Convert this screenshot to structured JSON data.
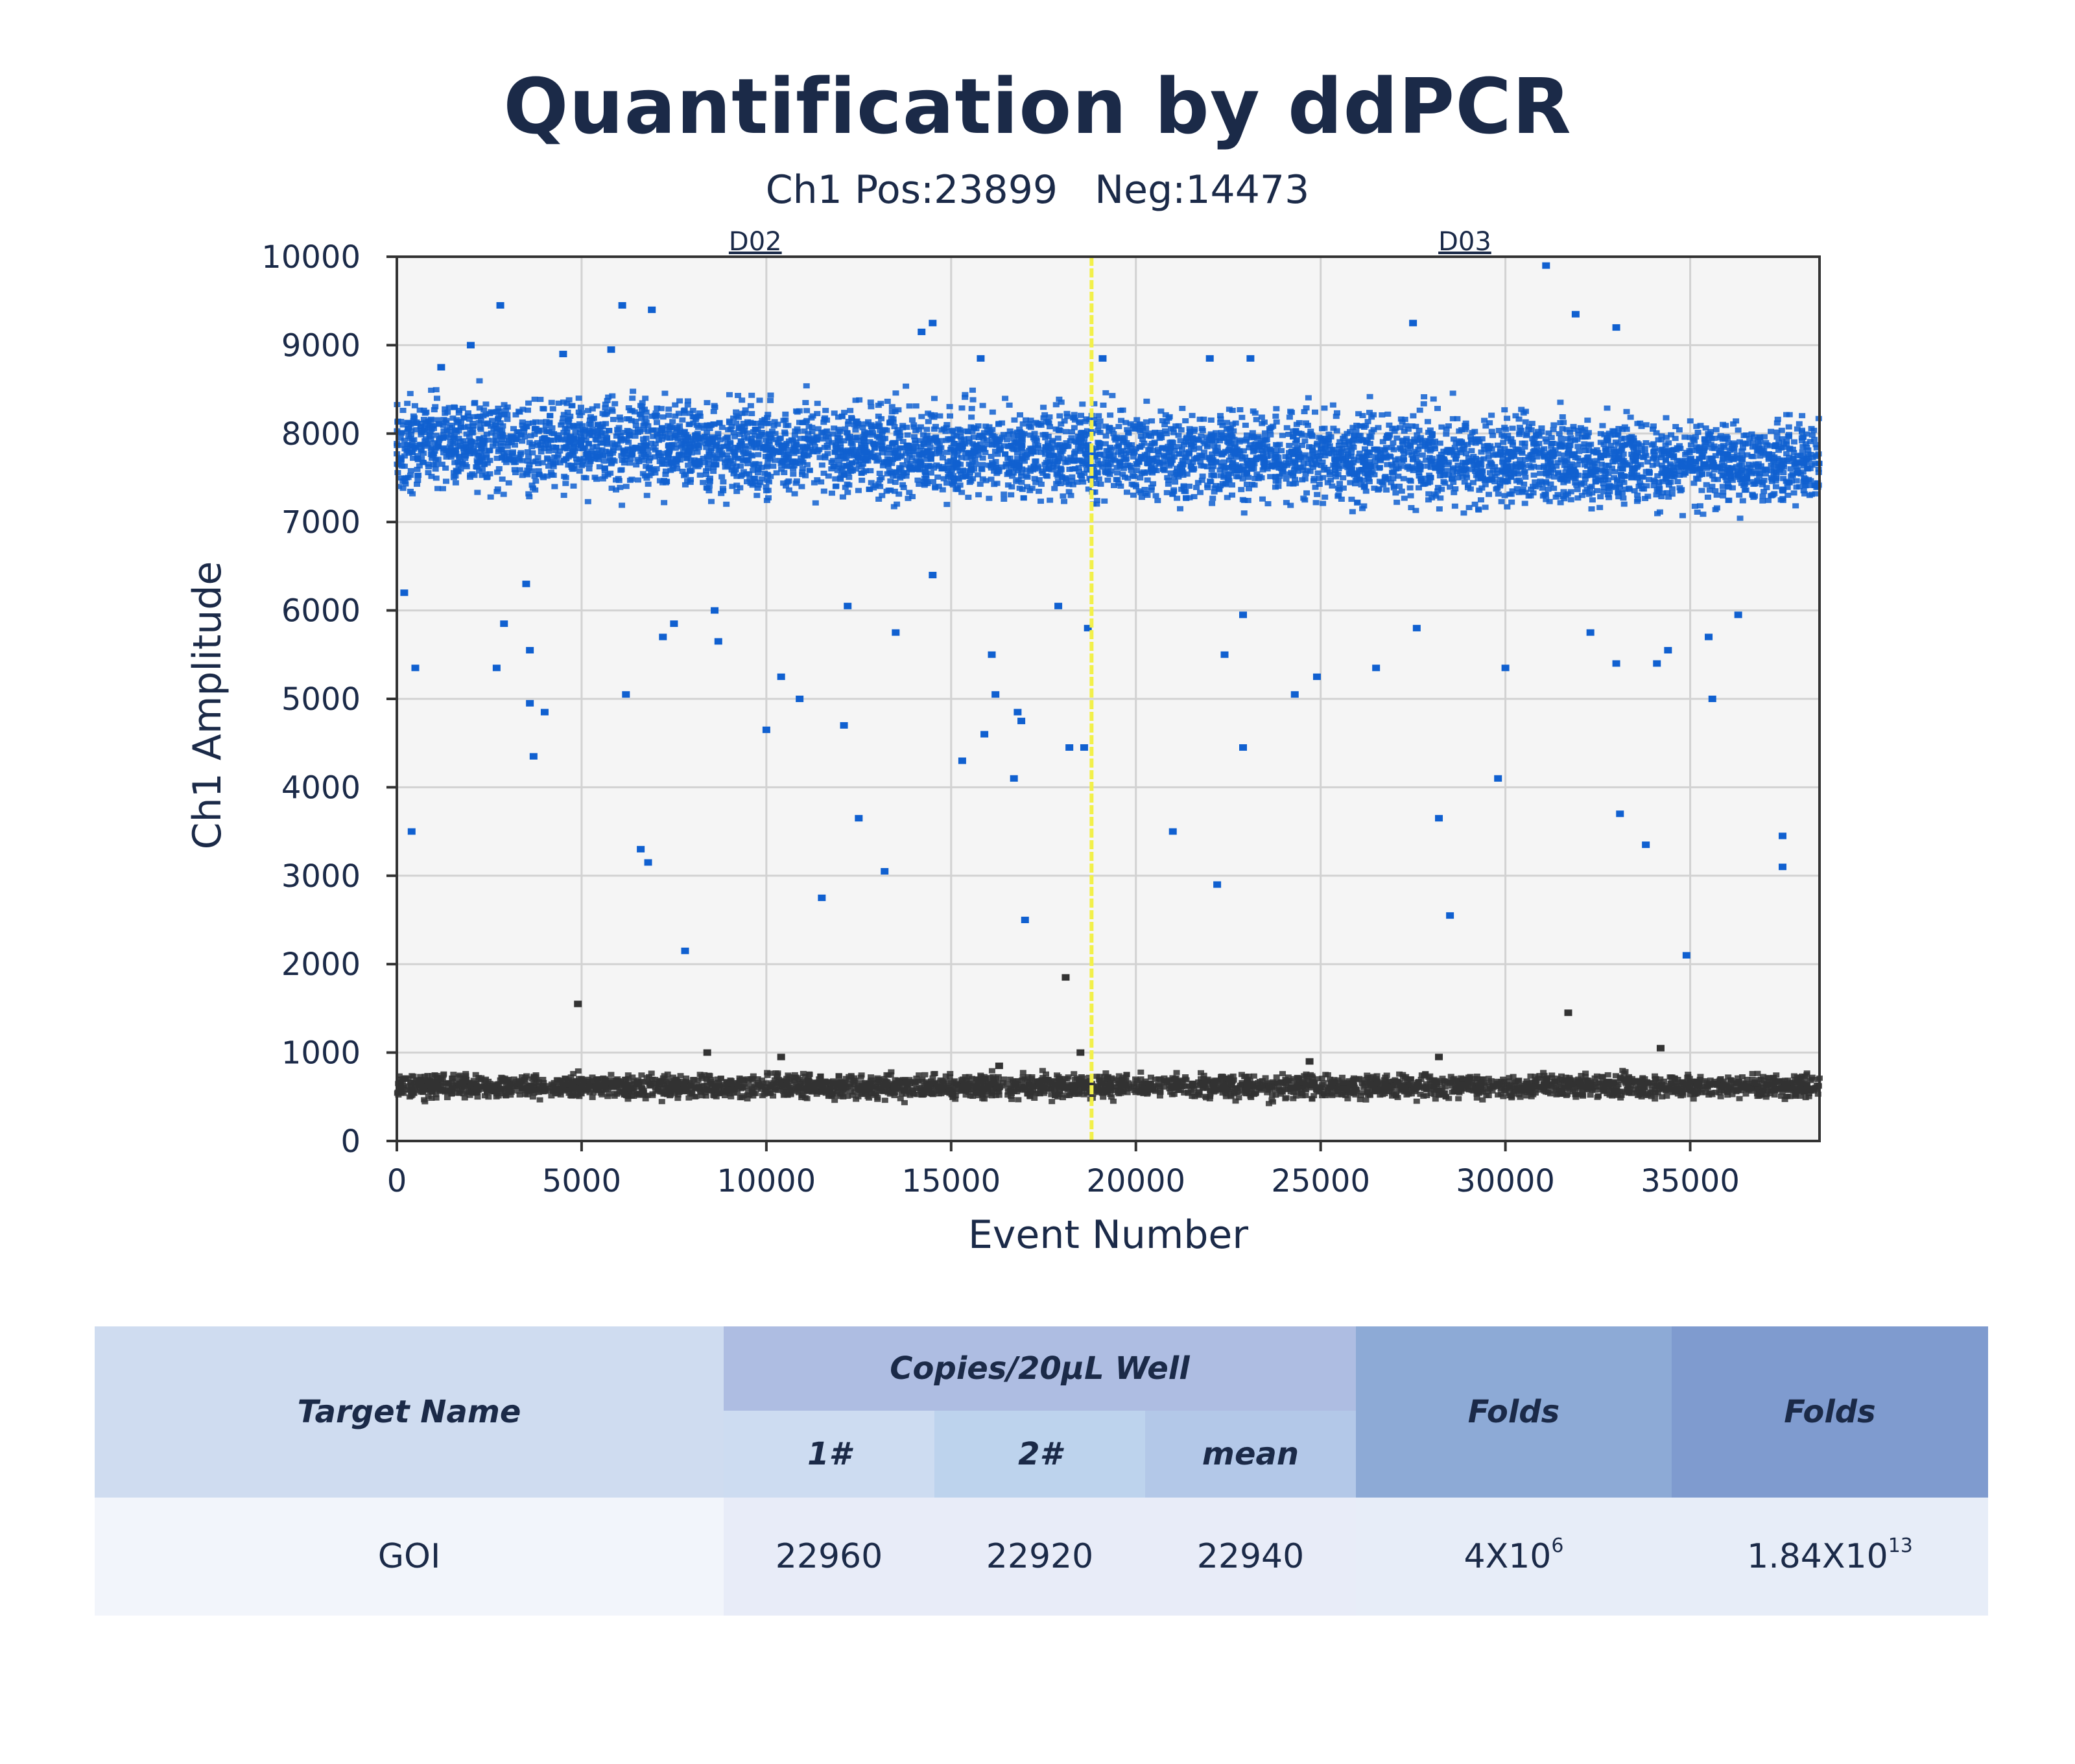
{
  "chart_data": {
    "type": "scatter",
    "title": "Quantification by ddPCR",
    "subtitle": {
      "channel": "Ch1",
      "pos_label": "Pos:",
      "pos": 23899,
      "neg_label": "Neg:",
      "neg": 14473
    },
    "xlabel": "Event Number",
    "ylabel": "Ch1 Amplitude",
    "xlim": [
      0,
      38500
    ],
    "ylim": [
      0,
      10000
    ],
    "xticks": [
      0,
      5000,
      10000,
      15000,
      20000,
      25000,
      30000,
      35000
    ],
    "yticks": [
      0,
      1000,
      2000,
      3000,
      4000,
      5000,
      6000,
      7000,
      8000,
      9000,
      10000
    ],
    "grid": true,
    "wells": [
      {
        "name": "D02",
        "label_x": 9700
      },
      {
        "name": "D03",
        "label_x": 28900
      }
    ],
    "well_divider_x": 18800,
    "series": [
      {
        "name": "Positive",
        "color": "#1060d0",
        "band": {
          "center_y_start": 7900,
          "center_y_end": 7650,
          "halfwidth": 600,
          "x_range": [
            0,
            38500
          ]
        },
        "outliers": [
          {
            "x": 200,
            "y": 6200
          },
          {
            "x": 400,
            "y": 3500
          },
          {
            "x": 500,
            "y": 5350
          },
          {
            "x": 1200,
            "y": 8750
          },
          {
            "x": 2000,
            "y": 9000
          },
          {
            "x": 2800,
            "y": 9450
          },
          {
            "x": 2700,
            "y": 5350
          },
          {
            "x": 2900,
            "y": 5850
          },
          {
            "x": 3500,
            "y": 6300
          },
          {
            "x": 3600,
            "y": 5550
          },
          {
            "x": 3600,
            "y": 4950
          },
          {
            "x": 3700,
            "y": 4350
          },
          {
            "x": 4000,
            "y": 4850
          },
          {
            "x": 4500,
            "y": 8900
          },
          {
            "x": 5800,
            "y": 8950
          },
          {
            "x": 6100,
            "y": 9450
          },
          {
            "x": 6200,
            "y": 5050
          },
          {
            "x": 6600,
            "y": 3300
          },
          {
            "x": 6800,
            "y": 3150
          },
          {
            "x": 6900,
            "y": 9400
          },
          {
            "x": 7200,
            "y": 5700
          },
          {
            "x": 7500,
            "y": 5850
          },
          {
            "x": 7800,
            "y": 2150
          },
          {
            "x": 8600,
            "y": 6000
          },
          {
            "x": 8700,
            "y": 5650
          },
          {
            "x": 10000,
            "y": 4650
          },
          {
            "x": 10400,
            "y": 5250
          },
          {
            "x": 10900,
            "y": 5000
          },
          {
            "x": 11500,
            "y": 2750
          },
          {
            "x": 12100,
            "y": 4700
          },
          {
            "x": 12200,
            "y": 6050
          },
          {
            "x": 12500,
            "y": 3650
          },
          {
            "x": 13200,
            "y": 3050
          },
          {
            "x": 13500,
            "y": 5750
          },
          {
            "x": 14200,
            "y": 9150
          },
          {
            "x": 14500,
            "y": 9250
          },
          {
            "x": 14500,
            "y": 6400
          },
          {
            "x": 15300,
            "y": 4300
          },
          {
            "x": 15800,
            "y": 8850
          },
          {
            "x": 15900,
            "y": 4600
          },
          {
            "x": 16100,
            "y": 5500
          },
          {
            "x": 16200,
            "y": 5050
          },
          {
            "x": 16700,
            "y": 4100
          },
          {
            "x": 16800,
            "y": 4850
          },
          {
            "x": 16900,
            "y": 4750
          },
          {
            "x": 17000,
            "y": 2500
          },
          {
            "x": 17900,
            "y": 6050
          },
          {
            "x": 18200,
            "y": 4450
          },
          {
            "x": 18600,
            "y": 4450
          },
          {
            "x": 18700,
            "y": 5800
          },
          {
            "x": 19100,
            "y": 8850
          },
          {
            "x": 21000,
            "y": 3500
          },
          {
            "x": 22000,
            "y": 8850
          },
          {
            "x": 22200,
            "y": 2900
          },
          {
            "x": 22400,
            "y": 5500
          },
          {
            "x": 22900,
            "y": 5950
          },
          {
            "x": 22900,
            "y": 4450
          },
          {
            "x": 23100,
            "y": 8850
          },
          {
            "x": 24300,
            "y": 5050
          },
          {
            "x": 24900,
            "y": 5250
          },
          {
            "x": 26500,
            "y": 5350
          },
          {
            "x": 27500,
            "y": 9250
          },
          {
            "x": 27600,
            "y": 5800
          },
          {
            "x": 28200,
            "y": 3650
          },
          {
            "x": 28500,
            "y": 2550
          },
          {
            "x": 29800,
            "y": 4100
          },
          {
            "x": 30000,
            "y": 5350
          },
          {
            "x": 31900,
            "y": 9350
          },
          {
            "x": 32300,
            "y": 5750
          },
          {
            "x": 33000,
            "y": 9200
          },
          {
            "x": 33000,
            "y": 5400
          },
          {
            "x": 33100,
            "y": 3700
          },
          {
            "x": 33800,
            "y": 3350
          },
          {
            "x": 34100,
            "y": 5400
          },
          {
            "x": 34400,
            "y": 5550
          },
          {
            "x": 34900,
            "y": 2100
          },
          {
            "x": 35500,
            "y": 5700
          },
          {
            "x": 35600,
            "y": 5000
          },
          {
            "x": 36300,
            "y": 5950
          },
          {
            "x": 37500,
            "y": 3450
          },
          {
            "x": 37500,
            "y": 3100
          },
          {
            "x": 31100,
            "y": 9900
          }
        ]
      },
      {
        "name": "Negative",
        "color": "#333333",
        "band": {
          "center_y_start": 620,
          "center_y_end": 620,
          "halfwidth": 160,
          "x_range": [
            0,
            38500
          ]
        },
        "outliers": [
          {
            "x": 4900,
            "y": 1550
          },
          {
            "x": 8400,
            "y": 1000
          },
          {
            "x": 10400,
            "y": 950
          },
          {
            "x": 16300,
            "y": 850
          },
          {
            "x": 18100,
            "y": 1850
          },
          {
            "x": 18500,
            "y": 1000
          },
          {
            "x": 24700,
            "y": 900
          },
          {
            "x": 28200,
            "y": 950
          },
          {
            "x": 31700,
            "y": 1450
          },
          {
            "x": 34200,
            "y": 1050
          }
        ]
      }
    ]
  },
  "table": {
    "header": {
      "target_name": "Target Name",
      "copies_group": "Copies/20μL Well",
      "sample1": "1#",
      "sample2": "2#",
      "mean": "mean",
      "folds1": "Folds",
      "folds2": "Folds"
    },
    "rows": [
      {
        "target": "GOI",
        "sample1": "22960",
        "sample2": "22920",
        "mean": "22940",
        "folds1_base": "4X10",
        "folds1_exp": "6",
        "folds2_base": "1.84X10",
        "folds2_exp": "13"
      }
    ]
  }
}
